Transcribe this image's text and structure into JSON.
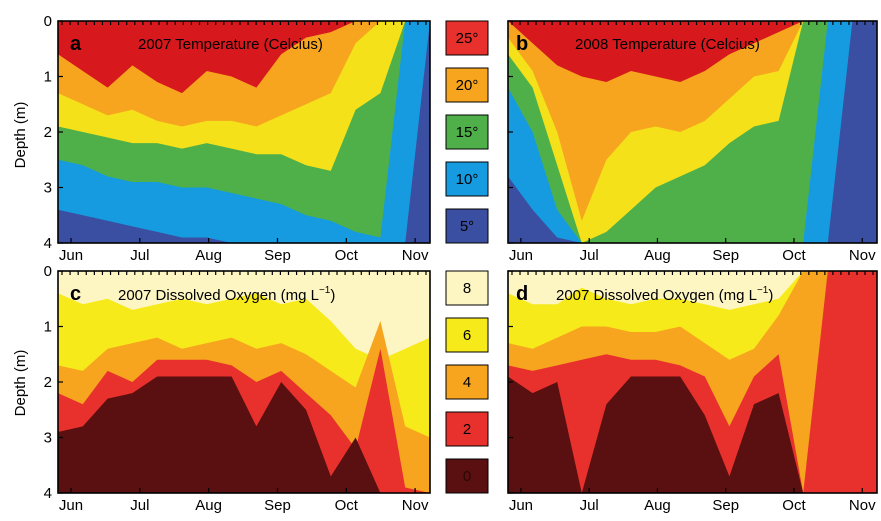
{
  "chart_data": [
    {
      "id": "a",
      "type": "heatmap",
      "letter": "a",
      "title": "2007 Temperature (Celcius)",
      "ylabel": "Depth (m)",
      "ylim": [
        4,
        0
      ],
      "yticks": [
        "0",
        "1",
        "2",
        "3",
        "4"
      ],
      "xticks": [
        "Jun",
        "Jul",
        "Aug",
        "Sep",
        "Oct",
        "Nov"
      ],
      "variable": "temperature",
      "layers": [
        {
          "level": 25,
          "boundary": [
            0.6,
            0.9,
            1.2,
            0.8,
            1.1,
            1.3,
            0.9,
            1.0,
            1.2,
            0.6,
            0.3,
            0.2,
            0.0,
            0.0,
            0.0,
            0.0
          ]
        },
        {
          "level": 20,
          "boundary": [
            1.3,
            1.5,
            1.7,
            1.6,
            1.8,
            1.9,
            1.8,
            1.8,
            1.9,
            1.7,
            1.5,
            1.3,
            0.4,
            0.0,
            0.0,
            0.0
          ]
        },
        {
          "level": 15,
          "boundary": [
            1.9,
            2.0,
            2.1,
            2.2,
            2.2,
            2.3,
            2.2,
            2.3,
            2.4,
            2.4,
            2.6,
            2.7,
            1.6,
            1.3,
            0.0,
            0.0
          ]
        },
        {
          "level": 10,
          "boundary": [
            2.5,
            2.6,
            2.8,
            2.9,
            2.9,
            3.0,
            3.0,
            3.1,
            3.2,
            3.3,
            3.5,
            3.6,
            3.8,
            3.9,
            0.0,
            0.0
          ]
        },
        {
          "level": 5,
          "boundary": [
            3.4,
            3.5,
            3.6,
            3.7,
            3.8,
            3.9,
            3.9,
            4.0,
            4.0,
            4.0,
            4.0,
            4.0,
            4.0,
            4.0,
            4.0,
            0.0
          ]
        }
      ]
    },
    {
      "id": "b",
      "type": "heatmap",
      "letter": "b",
      "title": "2008 Temperature (Celcius)",
      "ylim": [
        4,
        0
      ],
      "xticks": [
        "Jun",
        "Jul",
        "Aug",
        "Sep",
        "Oct",
        "Nov"
      ],
      "variable": "temperature",
      "layers": [
        {
          "level": 25,
          "boundary": [
            0.0,
            0.4,
            0.8,
            1.0,
            1.1,
            0.9,
            1.0,
            1.1,
            0.9,
            0.6,
            0.4,
            0.2,
            0.0,
            0.0,
            0.0,
            0.0
          ]
        },
        {
          "level": 20,
          "boundary": [
            0.3,
            0.9,
            2.0,
            3.6,
            2.5,
            2.0,
            1.9,
            2.0,
            1.8,
            1.4,
            1.0,
            0.9,
            0.0,
            0.0,
            0.0,
            0.0
          ]
        },
        {
          "level": 15,
          "boundary": [
            0.6,
            1.2,
            2.6,
            4.0,
            3.8,
            3.4,
            3.0,
            2.8,
            2.6,
            2.2,
            1.9,
            1.8,
            0.0,
            0.0,
            0.0,
            0.0
          ]
        },
        {
          "level": 10,
          "boundary": [
            1.2,
            2.0,
            3.4,
            4.0,
            4.0,
            4.0,
            4.0,
            4.0,
            4.0,
            4.0,
            4.0,
            4.0,
            4.0,
            0.0,
            0.0,
            0.0
          ]
        },
        {
          "level": 5,
          "boundary": [
            2.8,
            3.4,
            3.9,
            4.0,
            4.0,
            4.0,
            4.0,
            4.0,
            4.0,
            4.0,
            4.0,
            4.0,
            4.0,
            4.0,
            0.0,
            0.0
          ]
        }
      ]
    },
    {
      "id": "c",
      "type": "heatmap",
      "letter": "c",
      "title": "2007 Dissolved Oxygen (mg L",
      "title_sup": "−1",
      "title_close": ")",
      "ylabel": "Depth (m)",
      "ylim": [
        4,
        0
      ],
      "yticks": [
        "0",
        "1",
        "2",
        "3",
        "4"
      ],
      "xticks": [
        "Jun",
        "Jul",
        "Aug",
        "Sep",
        "Oct",
        "Nov"
      ],
      "variable": "oxygen",
      "layers": [
        {
          "level": 6,
          "boundary": [
            0.4,
            0.6,
            0.5,
            0.7,
            0.6,
            0.5,
            0.6,
            0.5,
            0.4,
            0.6,
            0.5,
            0.9,
            1.4,
            1.6,
            1.4,
            1.2
          ]
        },
        {
          "level": 4,
          "boundary": [
            1.7,
            1.8,
            1.4,
            1.3,
            1.2,
            1.4,
            1.3,
            1.2,
            1.4,
            1.3,
            1.5,
            1.8,
            2.1,
            0.9,
            2.8,
            3.0
          ]
        },
        {
          "level": 2,
          "boundary": [
            2.2,
            2.4,
            1.8,
            2.0,
            1.6,
            1.6,
            1.6,
            1.7,
            2.0,
            1.8,
            2.2,
            2.6,
            3.2,
            1.4,
            3.9,
            4.0
          ]
        },
        {
          "level": 0,
          "boundary": [
            2.9,
            2.8,
            2.3,
            2.2,
            1.9,
            1.9,
            1.9,
            1.9,
            2.8,
            2.0,
            2.5,
            3.7,
            3.0,
            4.0,
            4.0,
            4.0
          ]
        }
      ]
    },
    {
      "id": "d",
      "type": "heatmap",
      "letter": "d",
      "title": "2007 Dissolved Oxygen (mg L",
      "title_sup": "−1",
      "title_close": ")",
      "ylim": [
        4,
        0
      ],
      "xticks": [
        "Jun",
        "Jul",
        "Aug",
        "Sep",
        "Oct",
        "Nov"
      ],
      "variable": "oxygen",
      "layers": [
        {
          "level": 6,
          "boundary": [
            0.4,
            0.6,
            0.6,
            0.3,
            0.5,
            0.6,
            0.5,
            0.5,
            0.6,
            0.7,
            0.6,
            0.5,
            0.0,
            0.0,
            0.0,
            0.0
          ]
        },
        {
          "level": 4,
          "boundary": [
            1.3,
            1.4,
            1.2,
            1.0,
            1.0,
            1.1,
            1.1,
            1.0,
            1.3,
            1.6,
            1.4,
            0.8,
            0.0,
            0.0,
            0.0,
            0.0
          ]
        },
        {
          "level": 2,
          "boundary": [
            1.7,
            1.8,
            1.7,
            1.6,
            1.5,
            1.6,
            1.6,
            1.7,
            1.9,
            2.8,
            1.9,
            1.5,
            4.0,
            0.0,
            0.0,
            0.0
          ]
        },
        {
          "level": 0,
          "boundary": [
            1.9,
            2.2,
            2.0,
            4.0,
            2.4,
            1.9,
            1.9,
            1.9,
            2.6,
            3.7,
            2.4,
            2.2,
            4.0,
            4.0,
            4.0,
            4.0
          ]
        }
      ]
    }
  ],
  "colorbars": [
    {
      "id": "temperature",
      "labels": [
        "25°",
        "20°",
        "15°",
        "10°",
        "5°"
      ],
      "colors": [
        "#e8312c",
        "#f7a51f",
        "#4fb04a",
        "#169be0",
        "#3a4fa1"
      ],
      "label_color": [
        "#000000",
        "#000000",
        "#000000",
        "#000000",
        "#000000"
      ]
    },
    {
      "id": "oxygen",
      "labels": [
        "8",
        "6",
        "4",
        "2",
        "0"
      ],
      "colors": [
        "#fdf6c3",
        "#f7ea1a",
        "#f7a51f",
        "#e8312c",
        "#5a0f10"
      ],
      "label_color": [
        "#000000",
        "#000000",
        "#000000",
        "#000000",
        "#2b0707"
      ]
    }
  ],
  "palettes": {
    "temperature": {
      "levels": [
        25,
        20,
        15,
        10,
        5
      ],
      "colors": [
        "#d7181d",
        "#f7a51f",
        "#f4e11a",
        "#4fb04a",
        "#169be0",
        "#3a4fa1"
      ]
    },
    "oxygen": {
      "levels": [
        6,
        4,
        2,
        0
      ],
      "colors": [
        "#fdf6c3",
        "#f7ea1a",
        "#f7a51f",
        "#e8312c",
        "#5a0f10"
      ]
    }
  }
}
